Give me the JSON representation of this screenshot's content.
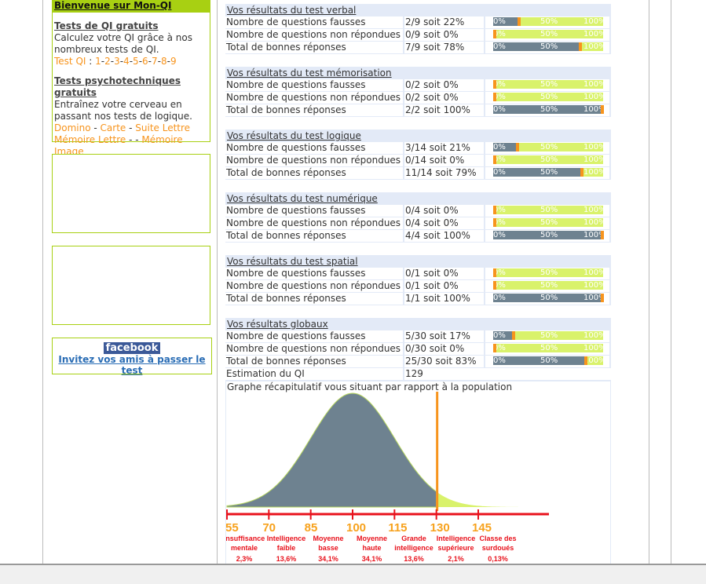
{
  "sidebar": {
    "welcome_title": "Bienvenue sur Mon-QI",
    "iq_title": "Tests de QI gratuits",
    "iq_text": "Calculez votre QI grâce à nos nombreux tests de QI.",
    "iq_link_label": "Test QI",
    "iq_links": [
      "1",
      "2",
      "3",
      "4",
      "5",
      "6",
      "7",
      "8",
      "9"
    ],
    "psy_title": "Tests psychotechniques gratuits",
    "psy_text": "Entraînez votre cerveau en passant nos tests de logique.",
    "psy_links": [
      "Domino",
      "Carte",
      "Suite Lettre",
      "Mémoire Lettre",
      "Mémoire Image"
    ],
    "facebook_logo": "facebook",
    "facebook_invite": "Invitez vos amis à passer le test"
  },
  "bar_labels": [
    "0%",
    "50%",
    "100%"
  ],
  "colors": {
    "fill": "#6e8290",
    "rest": "#d9f26b",
    "marker": "#f7941d",
    "accent": "#a8d012",
    "axis": "#e8121c"
  },
  "sections": [
    {
      "title": "Vos résultats du test verbal",
      "rows": [
        {
          "label": "Nombre de questions fausses",
          "value": "2/9 soit 22%",
          "pct": 22
        },
        {
          "label": "Nombre de questions non répondues",
          "value": "0/9 soit 0%",
          "pct": 0
        },
        {
          "label": "Total de bonnes réponses",
          "value": "7/9 soit 78%",
          "pct": 78
        }
      ]
    },
    {
      "title": "Vos résultats du test mémorisation",
      "rows": [
        {
          "label": "Nombre de questions fausses",
          "value": "0/2 soit 0%",
          "pct": 0
        },
        {
          "label": "Nombre de questions non répondues",
          "value": "0/2 soit 0%",
          "pct": 0
        },
        {
          "label": "Total de bonnes réponses",
          "value": "2/2 soit 100%",
          "pct": 100
        }
      ]
    },
    {
      "title": "Vos résultats du test logique",
      "rows": [
        {
          "label": "Nombre de questions fausses",
          "value": "3/14 soit 21%",
          "pct": 21
        },
        {
          "label": "Nombre de questions non répondues",
          "value": "0/14 soit 0%",
          "pct": 0
        },
        {
          "label": "Total de bonnes réponses",
          "value": "11/14 soit 79%",
          "pct": 79
        }
      ]
    },
    {
      "title": "Vos résultats du test numérique",
      "rows": [
        {
          "label": "Nombre de questions fausses",
          "value": "0/4 soit 0%",
          "pct": 0
        },
        {
          "label": "Nombre de questions non répondues",
          "value": "0/4 soit 0%",
          "pct": 0
        },
        {
          "label": "Total de bonnes réponses",
          "value": "4/4 soit 100%",
          "pct": 100
        }
      ]
    },
    {
      "title": "Vos résultats du test spatial",
      "rows": [
        {
          "label": "Nombre de questions fausses",
          "value": "0/1 soit 0%",
          "pct": 0
        },
        {
          "label": "Nombre de questions non répondues",
          "value": "0/1 soit 0%",
          "pct": 0
        },
        {
          "label": "Total de bonnes réponses",
          "value": "1/1 soit 100%",
          "pct": 100
        }
      ]
    },
    {
      "title": "Vos résultats globaux",
      "rows": [
        {
          "label": "Nombre de questions fausses",
          "value": "5/30 soit 17%",
          "pct": 17
        },
        {
          "label": "Nombre de questions non répondues",
          "value": "0/30 soit 0%",
          "pct": 0
        },
        {
          "label": "Total de bonnes réponses",
          "value": "25/30 soit 83%",
          "pct": 83
        }
      ]
    }
  ],
  "iq_estimate": {
    "label": "Estimation du QI",
    "value": "129"
  },
  "graph": {
    "title": "Graphe récapitulatif vous situant par rapport à la population",
    "marker_iq": 130,
    "ticks": [
      "55",
      "70",
      "85",
      "100",
      "115",
      "130",
      "145"
    ],
    "classes": [
      {
        "name": [
          "Insuffisance",
          "mentale"
        ],
        "pct": "2,3%"
      },
      {
        "name": [
          "Intelligence",
          "faible"
        ],
        "pct": "13,6%"
      },
      {
        "name": [
          "Moyenne",
          "basse"
        ],
        "pct": "34,1%"
      },
      {
        "name": [
          "Moyenne",
          "haute"
        ],
        "pct": "34,1%"
      },
      {
        "name": [
          "Grande",
          "intelligence"
        ],
        "pct": "13,6%"
      },
      {
        "name": [
          "Intelligence",
          "supérieure"
        ],
        "pct": "2,1%"
      },
      {
        "name": [
          "Classe des",
          "surdoués"
        ],
        "pct": "0,13%"
      }
    ]
  }
}
